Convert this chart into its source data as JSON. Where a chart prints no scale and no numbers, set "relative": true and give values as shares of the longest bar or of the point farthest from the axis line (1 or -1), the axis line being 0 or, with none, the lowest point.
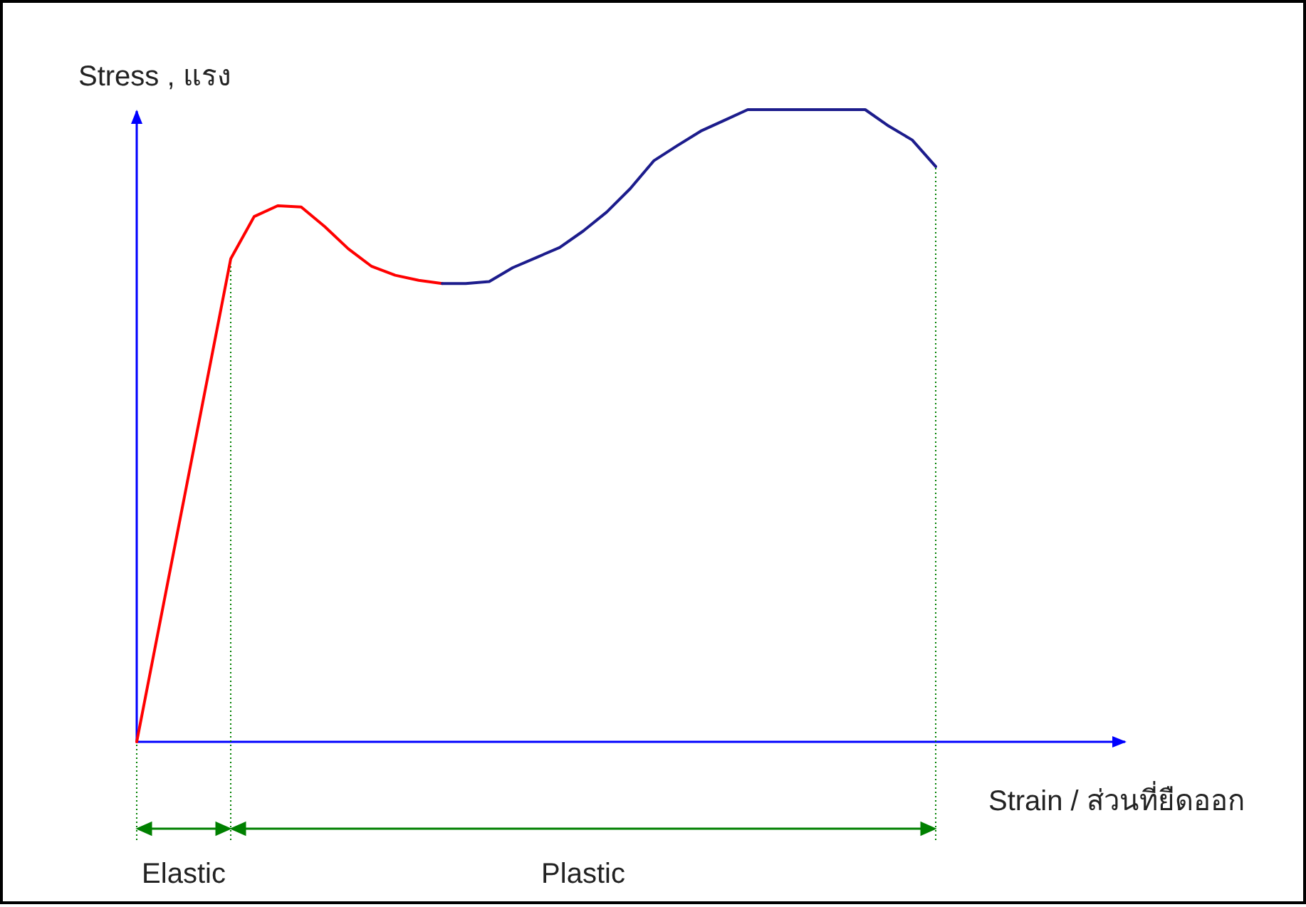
{
  "chart_data": {
    "type": "line",
    "relative": true,
    "xlabel": "Strain / ส่วนที่ยืดออก",
    "ylabel": "Stress , แรง",
    "categories": [
      null,
      null,
      null,
      null,
      null,
      null,
      null,
      null,
      null,
      null,
      null,
      null,
      null,
      null,
      null,
      null,
      null,
      null,
      null,
      null,
      null,
      null,
      null,
      null,
      null,
      null,
      null,
      null,
      null,
      null,
      null,
      null,
      null,
      null,
      null
    ],
    "series": [
      {
        "color": "#ff0000",
        "values": [
          0,
          0.191,
          0.382,
          0.573,
          0.764,
          0.831,
          0.848,
          0.846,
          0.815,
          0.78,
          0.752,
          0.738,
          0.73,
          0.725,
          null,
          null,
          null,
          null,
          null,
          null,
          null,
          null,
          null,
          null,
          null,
          null,
          null,
          null,
          null,
          null,
          null,
          null,
          null,
          null,
          null
        ]
      },
      {
        "color": "#1c1c8c",
        "values": [
          null,
          null,
          null,
          null,
          null,
          null,
          null,
          null,
          null,
          null,
          null,
          null,
          null,
          0.725,
          0.725,
          0.728,
          0.75,
          0.766,
          0.782,
          0.808,
          0.838,
          0.875,
          0.919,
          0.943,
          0.966,
          0.983,
          1.0,
          1.0,
          1.0,
          1.0,
          1.0,
          1.0,
          0.974,
          0.952,
          0.91
        ]
      }
    ],
    "annotations": [
      "Elastic",
      "Plastic"
    ]
  }
}
